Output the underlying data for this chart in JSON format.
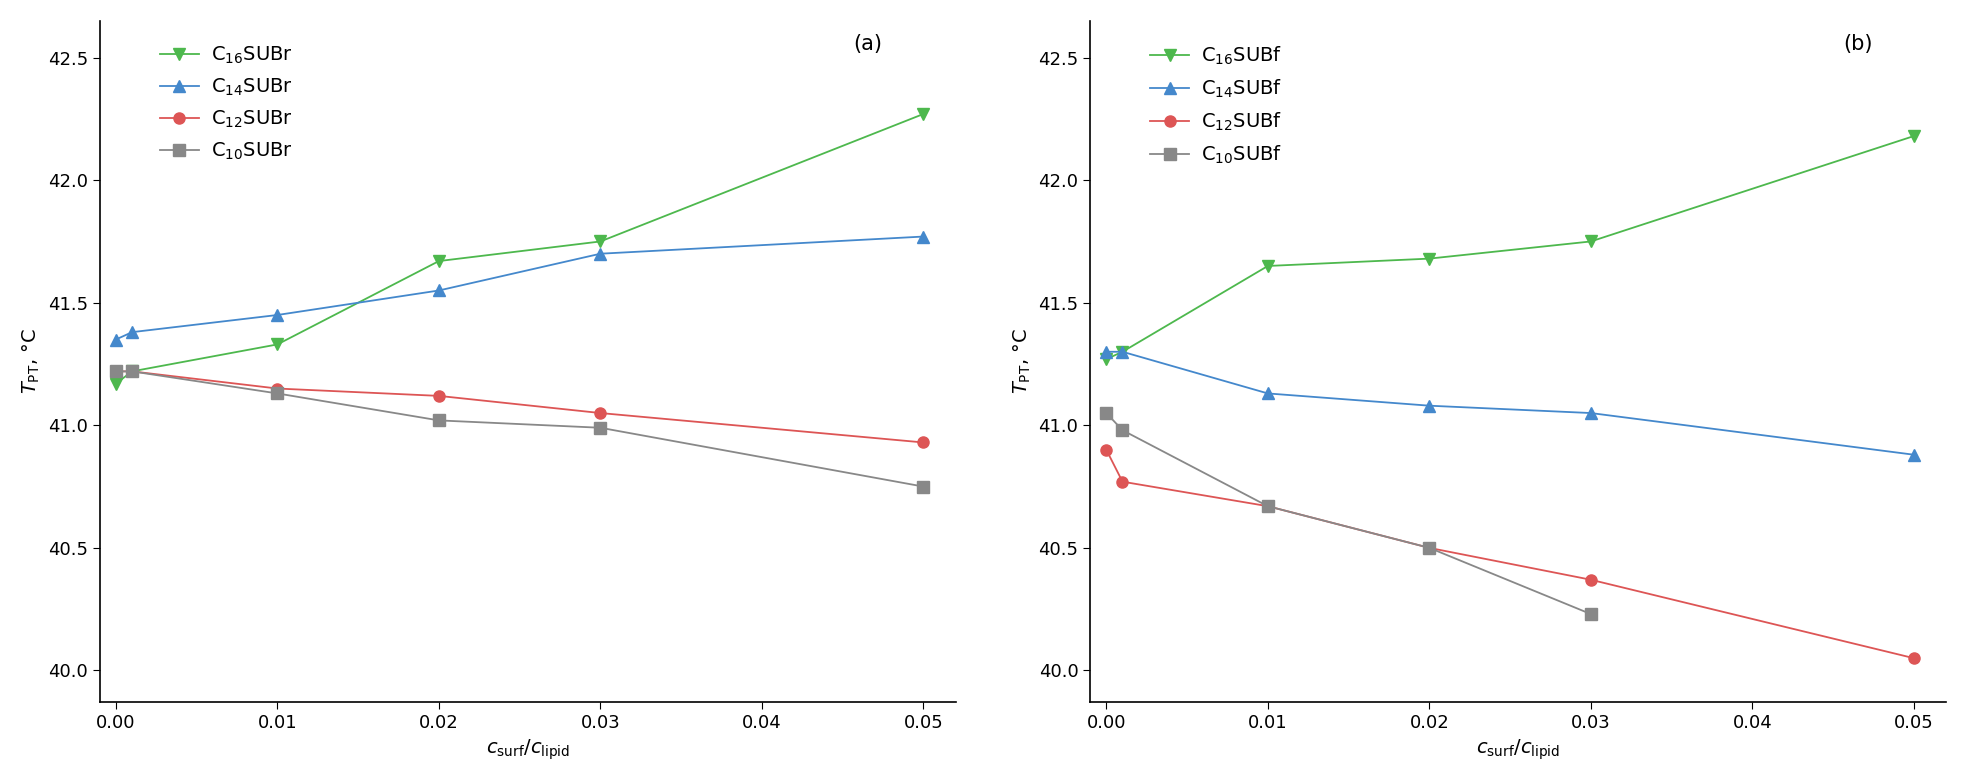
{
  "panel_a": {
    "label": "(a)",
    "x": [
      0.0,
      0.001,
      0.01,
      0.02,
      0.03,
      0.05
    ],
    "series": [
      {
        "name": "C$_{16}$SUBr",
        "color": "#4db84d",
        "marker": "v",
        "y": [
          41.17,
          41.22,
          41.33,
          41.67,
          41.75,
          42.27
        ]
      },
      {
        "name": "C$_{14}$SUBr",
        "color": "#4488cc",
        "marker": "^",
        "y": [
          41.35,
          41.38,
          41.45,
          41.55,
          41.7,
          41.77
        ]
      },
      {
        "name": "C$_{12}$SUBr",
        "color": "#dd5555",
        "marker": "o",
        "y": [
          41.22,
          41.22,
          41.15,
          41.12,
          41.05,
          40.93
        ]
      },
      {
        "name": "C$_{10}$SUBr",
        "color": "#888888",
        "marker": "s",
        "y": [
          41.22,
          41.22,
          41.13,
          41.02,
          40.99,
          40.75
        ]
      }
    ],
    "ylabel": "$\\mathit{T}_{\\mathrm{PT}}$, °C",
    "xlabel": "$c_{\\mathrm{surf}}/c_{\\mathrm{lipid}}$",
    "ylim": [
      39.87,
      42.65
    ],
    "yticks": [
      40.0,
      40.5,
      41.0,
      41.5,
      42.0,
      42.5
    ],
    "xticks": [
      0.0,
      0.01,
      0.02,
      0.03,
      0.04,
      0.05
    ]
  },
  "panel_b": {
    "label": "(b)",
    "x": [
      0.0,
      0.001,
      0.01,
      0.02,
      0.03,
      0.05
    ],
    "series": [
      {
        "name": "C$_{16}$SUBf",
        "color": "#4db84d",
        "marker": "v",
        "y": [
          41.27,
          41.3,
          41.65,
          41.68,
          41.75,
          42.18
        ]
      },
      {
        "name": "C$_{14}$SUBf",
        "color": "#4488cc",
        "marker": "^",
        "y": [
          41.3,
          41.3,
          41.13,
          41.08,
          41.05,
          40.88
        ]
      },
      {
        "name": "C$_{12}$SUBf",
        "color": "#dd5555",
        "marker": "o",
        "y": [
          40.9,
          40.77,
          40.67,
          40.5,
          40.37,
          40.05
        ]
      },
      {
        "name": "C$_{10}$SUBf",
        "color": "#888888",
        "marker": "s",
        "y": [
          41.05,
          40.98,
          40.67,
          40.5,
          40.23,
          null
        ]
      }
    ],
    "ylabel": "$\\mathit{T}_{\\mathrm{PT}}$, °C",
    "xlabel": "$c_{\\mathrm{surf}}/c_{\\mathrm{lipid}}$",
    "ylim": [
      39.87,
      42.65
    ],
    "yticks": [
      40.0,
      40.5,
      41.0,
      41.5,
      42.0,
      42.5
    ],
    "xticks": [
      0.0,
      0.01,
      0.02,
      0.03,
      0.04,
      0.05
    ]
  },
  "line_width": 1.3,
  "marker_size": 8,
  "font_size": 14,
  "label_font_size": 14,
  "tick_font_size": 13
}
